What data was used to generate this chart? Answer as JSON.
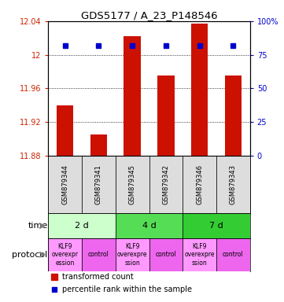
{
  "title": "GDS5177 / A_23_P148546",
  "samples": [
    "GSM879344",
    "GSM879341",
    "GSM879345",
    "GSM879342",
    "GSM879346",
    "GSM879343"
  ],
  "bar_values": [
    11.94,
    11.905,
    12.022,
    11.975,
    12.037,
    11.975
  ],
  "bar_bottom": 11.88,
  "percentile_values": [
    0.82,
    0.82,
    0.82,
    0.82,
    0.82,
    0.82
  ],
  "ylim_left": [
    11.88,
    12.04
  ],
  "ylim_right": [
    0,
    100
  ],
  "yticks_left": [
    11.88,
    11.92,
    11.96,
    12.0,
    12.04
  ],
  "yticks_right": [
    0,
    25,
    50,
    75,
    100
  ],
  "ytick_labels_left": [
    "11.88",
    "11.92",
    "11.96",
    "12",
    "12.04"
  ],
  "ytick_labels_right": [
    "0",
    "25",
    "50",
    "75",
    "100%"
  ],
  "bar_color": "#cc1100",
  "dot_color": "#0000cc",
  "time_groups": [
    {
      "label": "2 d",
      "start": 0,
      "end": 2,
      "color": "#ccffcc"
    },
    {
      "label": "4 d",
      "start": 2,
      "end": 4,
      "color": "#55dd55"
    },
    {
      "label": "7 d",
      "start": 4,
      "end": 6,
      "color": "#33cc33"
    }
  ],
  "protocol_groups": [
    {
      "label": "KLF9\noverexpr\nession",
      "start": 0,
      "end": 1,
      "color": "#ff99ff"
    },
    {
      "label": "control",
      "start": 1,
      "end": 2,
      "color": "#ee66ee"
    },
    {
      "label": "KLF9\noverexpre\nssion",
      "start": 2,
      "end": 3,
      "color": "#ff99ff"
    },
    {
      "label": "control",
      "start": 3,
      "end": 4,
      "color": "#ee66ee"
    },
    {
      "label": "KLF9\noverexpre\nssion",
      "start": 4,
      "end": 5,
      "color": "#ff99ff"
    },
    {
      "label": "control",
      "start": 5,
      "end": 6,
      "color": "#ee66ee"
    }
  ],
  "time_label": "time",
  "protocol_label": "protocol",
  "legend_bar_label": "transformed count",
  "legend_dot_label": "percentile rank within the sample"
}
